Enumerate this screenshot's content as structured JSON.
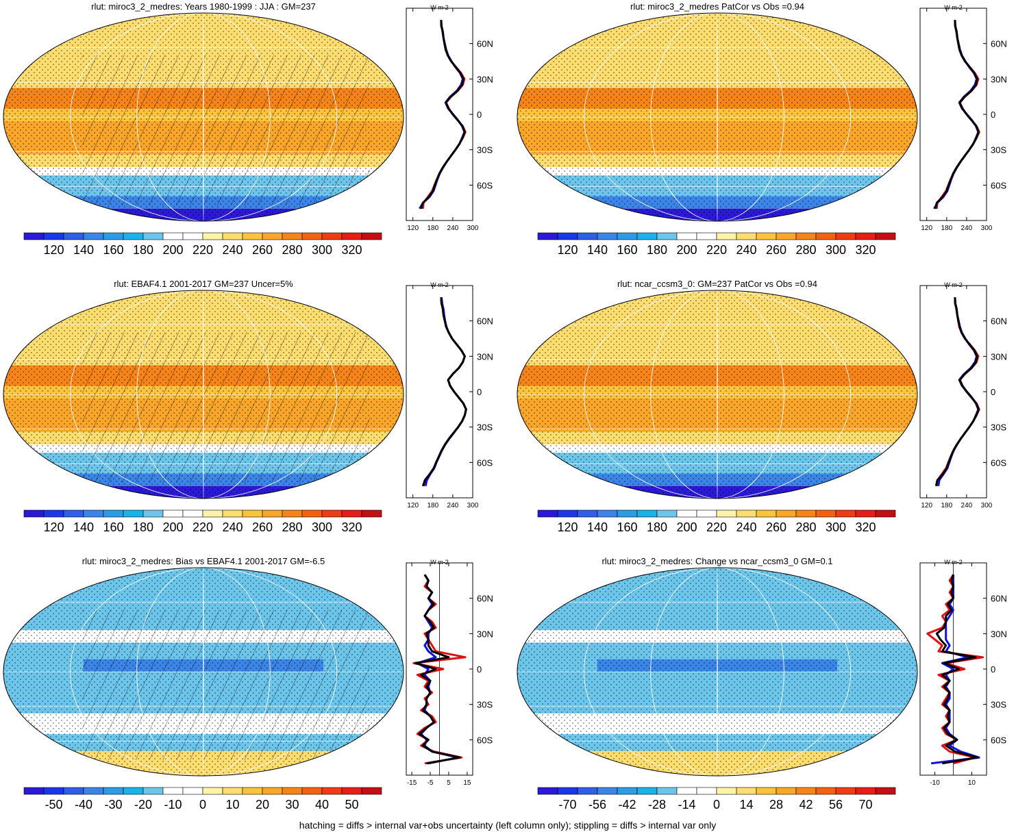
{
  "panels": [
    {
      "title": "rlut: miroc3_2_medres: Years 1980-1999 : JJA : GM=237",
      "hatched": true,
      "colorbar": {
        "labels": [
          "120",
          "140",
          "160",
          "180",
          "200",
          "220",
          "240",
          "260",
          "280",
          "300",
          "320"
        ],
        "scheme": "absolute"
      },
      "zonal_mean": {
        "unit": "W m-2",
        "xticks": [
          "120",
          "180",
          "240",
          "300"
        ],
        "xlim": [
          100,
          300
        ],
        "zero_line": false
      }
    },
    {
      "title": "rlut: miroc3_2_medres PatCor vs Obs =0.94",
      "hatched": false,
      "colorbar": {
        "labels": [
          "120",
          "140",
          "160",
          "180",
          "200",
          "220",
          "240",
          "260",
          "280",
          "300",
          "320"
        ],
        "scheme": "absolute"
      },
      "zonal_mean": {
        "unit": "W m-2",
        "xticks": [
          "120",
          "180",
          "240",
          "300"
        ],
        "xlim": [
          100,
          300
        ],
        "zero_line": false
      }
    },
    {
      "title": "rlut: EBAF4.1 2001-2017 GM=237 Uncer=5%",
      "hatched": true,
      "colorbar": {
        "labels": [
          "120",
          "140",
          "160",
          "180",
          "200",
          "220",
          "240",
          "260",
          "280",
          "300",
          "320"
        ],
        "scheme": "absolute"
      },
      "zonal_mean": {
        "unit": "W m-2",
        "xticks": [
          "120",
          "180",
          "240",
          "300"
        ],
        "xlim": [
          100,
          300
        ],
        "zero_line": false
      }
    },
    {
      "title": "rlut: ncar_ccsm3_0: GM=237 PatCor vs Obs =0.94",
      "hatched": false,
      "colorbar": {
        "labels": [
          "120",
          "140",
          "160",
          "180",
          "200",
          "220",
          "240",
          "260",
          "280",
          "300",
          "320"
        ],
        "scheme": "absolute"
      },
      "zonal_mean": {
        "unit": "W m-2",
        "xticks": [
          "120",
          "180",
          "240",
          "300"
        ],
        "xlim": [
          100,
          300
        ],
        "zero_line": false
      }
    },
    {
      "title": "rlut: miroc3_2_medres: Bias vs EBAF4.1 2001-2017 GM=-6.5",
      "hatched": true,
      "colorbar": {
        "labels": [
          "-50",
          "-40",
          "-30",
          "-20",
          "-10",
          "0",
          "10",
          "20",
          "30",
          "40",
          "50"
        ],
        "scheme": "diff"
      },
      "zonal_mean": {
        "unit": "W m-2",
        "xticks": [
          "-15",
          "-5",
          "5",
          "15"
        ],
        "xlim": [
          -18,
          18
        ],
        "zero_line": true
      }
    },
    {
      "title": "rlut: miroc3_2_medres: Change vs ncar_ccsm3_0 GM=0.1",
      "hatched": false,
      "colorbar": {
        "labels": [
          "-70",
          "-56",
          "-42",
          "-28",
          "-14",
          "0",
          "14",
          "28",
          "42",
          "56",
          "70"
        ],
        "scheme": "diff"
      },
      "zonal_mean": {
        "unit": "W m-2",
        "xticks": [
          "-10",
          "10"
        ],
        "xlim": [
          -18,
          18
        ],
        "zero_line": true
      }
    }
  ],
  "lat_ticks": [
    "60N",
    "30N",
    "0",
    "30S",
    "60S"
  ],
  "footer": "hatching = diffs > internal var+obs uncertainty (left column only); stippling = diffs > internal var only",
  "colors": {
    "absolute_scale": [
      "#2a19d6",
      "#1a38e8",
      "#2e5fe6",
      "#3b84e8",
      "#2c9ce6",
      "#1bb2ec",
      "#6cc6ec",
      "#ffffff",
      "#ffffff",
      "#fff3a8",
      "#fddc70",
      "#fbc33e",
      "#f9a62a",
      "#f68418",
      "#f36210",
      "#ee3c14",
      "#e61e16",
      "#c40e14"
    ],
    "diff_scale": [
      "#2a19d6",
      "#1a38e8",
      "#2e5fe6",
      "#3b84e8",
      "#2c9ce6",
      "#1bb2ec",
      "#6cc6ec",
      "#ffffff",
      "#ffffff",
      "#fff3a8",
      "#fddc70",
      "#fbc33e",
      "#f9a62a",
      "#f68418",
      "#f36210",
      "#ee3c14",
      "#e61e16",
      "#c40e14"
    ],
    "series": [
      "#e01010",
      "#1010e0",
      "#000000"
    ]
  },
  "chart_data": {
    "type": "line",
    "description_units": "W m-2 vs latitude (deg)",
    "latitudes": [
      -80,
      -75,
      -70,
      -65,
      -60,
      -55,
      -50,
      -45,
      -40,
      -35,
      -30,
      -25,
      -20,
      -15,
      -10,
      -5,
      0,
      5,
      10,
      15,
      20,
      25,
      30,
      35,
      40,
      45,
      50,
      55,
      60,
      65,
      70,
      75,
      80
    ],
    "panels": [
      {
        "series": [
          {
            "values": [
              150,
              152,
              165,
              178,
              185,
              192,
              200,
              210,
              222,
              235,
              248,
              260,
              270,
              278,
              270,
              255,
              240,
              228,
              220,
              235,
              255,
              270,
              275,
              265,
              250,
              235,
              225,
              218,
              215,
              212,
              210,
              205,
              205
            ]
          },
          {
            "values": [
              140,
              150,
              170,
              182,
              188,
              194,
              201,
              211,
              222,
              235,
              248,
              260,
              268,
              275,
              268,
              256,
              241,
              226,
              218,
              232,
              252,
              265,
              270,
              262,
              248,
              236,
              226,
              220,
              216,
              212,
              209,
              206,
              205
            ]
          },
          {
            "values": [
              145,
              150,
              168,
              180,
              186,
              193,
              200,
              210,
              222,
              235,
              248,
              260,
              269,
              276,
              269,
              255,
              240,
              227,
              219,
              234,
              254,
              268,
              272,
              263,
              249,
              235,
              225,
              219,
              215,
              212,
              210,
              206,
              205
            ]
          }
        ]
      },
      {
        "series": [
          {
            "values": [
              150,
              152,
              165,
              178,
              185,
              192,
              200,
              210,
              222,
              235,
              248,
              260,
              270,
              278,
              270,
              255,
              240,
              228,
              220,
              235,
              255,
              270,
              275,
              265,
              250,
              235,
              225,
              218,
              215,
              212,
              210,
              205,
              205
            ]
          },
          {
            "values": [
              142,
              152,
              170,
              182,
              188,
              194,
              201,
              211,
              222,
              235,
              248,
              260,
              268,
              275,
              268,
              256,
              241,
              226,
              218,
              232,
              252,
              265,
              270,
              262,
              248,
              236,
              226,
              220,
              216,
              212,
              209,
              206,
              205
            ]
          },
          {
            "values": [
              146,
              150,
              168,
              180,
              186,
              193,
              200,
              210,
              222,
              235,
              248,
              260,
              269,
              276,
              269,
              255,
              240,
              227,
              219,
              234,
              254,
              268,
              272,
              263,
              249,
              235,
              225,
              219,
              215,
              212,
              210,
              206,
              205
            ]
          }
        ]
      },
      {
        "series": [
          {
            "values": [
              152,
              158,
              170,
              182,
              190,
              198,
              206,
              216,
              228,
              242,
              256,
              268,
              276,
              280,
              272,
              258,
              244,
              232,
              226,
              240,
              258,
              270,
              276,
              266,
              252,
              238,
              228,
              220,
              216,
              212,
              210,
              206,
              205
            ]
          },
          {
            "values": [
              158,
              162,
              172,
              184,
              191,
              199,
              207,
              217,
              229,
              243,
              256,
              268,
              276,
              280,
              272,
              258,
              244,
              232,
              226,
              240,
              258,
              270,
              276,
              266,
              252,
              238,
              228,
              221,
              217,
              214,
              212,
              208,
              206
            ]
          },
          {
            "values": [
              150,
              156,
              170,
              183,
              190,
              198,
              206,
              216,
              228,
              242,
              256,
              268,
              276,
              280,
              272,
              258,
              244,
              232,
              226,
              240,
              258,
              270,
              276,
              266,
              252,
              238,
              228,
              220,
              216,
              212,
              210,
              206,
              205
            ]
          }
        ]
      },
      {
        "series": [
          {
            "values": [
              150,
              152,
              165,
              178,
              185,
              192,
              200,
              210,
              222,
              235,
              248,
              260,
              270,
              278,
              270,
              255,
              240,
              228,
              220,
              235,
              255,
              270,
              275,
              265,
              250,
              235,
              225,
              218,
              215,
              212,
              210,
              205,
              205
            ]
          },
          {
            "values": [
              155,
              158,
              170,
              182,
              188,
              194,
              201,
              211,
              222,
              235,
              248,
              260,
              268,
              275,
              268,
              256,
              241,
              226,
              218,
              232,
              252,
              265,
              270,
              262,
              248,
              236,
              226,
              220,
              216,
              212,
              209,
              206,
              205
            ]
          },
          {
            "values": [
              148,
              152,
              168,
              180,
              186,
              193,
              200,
              210,
              222,
              235,
              248,
              260,
              269,
              276,
              269,
              255,
              240,
              227,
              219,
              234,
              254,
              268,
              272,
              263,
              249,
              235,
              225,
              219,
              215,
              212,
              210,
              206,
              205
            ]
          }
        ]
      },
      {
        "series": [
          {
            "values": [
              -8,
              12,
              -3,
              -10,
              -6,
              -12,
              -8,
              -2,
              -4,
              -10,
              -6,
              -8,
              -4,
              -8,
              -6,
              -12,
              2,
              -14,
              14,
              -2,
              -4,
              -6,
              -8,
              -2,
              -4,
              -8,
              -6,
              -2,
              -6,
              -4,
              -8,
              -6,
              -8
            ]
          },
          {
            "values": [
              -6,
              10,
              -4,
              -8,
              -7,
              -10,
              -7,
              -3,
              -5,
              -8,
              -7,
              -7,
              -5,
              -6,
              -5,
              -8,
              -6,
              -12,
              -2,
              -6,
              -8,
              -6,
              -6,
              -4,
              -6,
              -8,
              -6,
              -4,
              -6,
              -4,
              -7,
              -6,
              -8
            ]
          },
          {
            "values": [
              -7,
              11,
              -4,
              -9,
              -6,
              -11,
              -7,
              -3,
              -5,
              -9,
              -7,
              -7,
              -5,
              -7,
              -5,
              -10,
              -2,
              -13,
              5,
              -4,
              -6,
              -6,
              -7,
              -3,
              -5,
              -8,
              -6,
              -3,
              -6,
              -4,
              -7,
              -6,
              -8
            ]
          }
        ]
      },
      {
        "series": [
          {
            "values": [
              0,
              12,
              -2,
              -6,
              2,
              -4,
              -6,
              -2,
              -4,
              -2,
              -6,
              -4,
              -2,
              -6,
              -2,
              -8,
              6,
              -4,
              16,
              -8,
              -6,
              -10,
              -14,
              -6,
              -4,
              -6,
              -2,
              -4,
              0,
              -2,
              0,
              -2,
              0
            ]
          },
          {
            "values": [
              -12,
              14,
              4,
              -2,
              2,
              -2,
              -4,
              -2,
              -2,
              -2,
              -4,
              -2,
              -2,
              -4,
              -2,
              -4,
              0,
              -6,
              8,
              -4,
              -2,
              -4,
              -4,
              -4,
              -4,
              -2,
              0,
              -2,
              0,
              0,
              0,
              0,
              0
            ]
          },
          {
            "values": [
              -6,
              13,
              1,
              -4,
              2,
              -3,
              -5,
              -2,
              -3,
              -2,
              -5,
              -3,
              -2,
              -5,
              -2,
              -6,
              3,
              -5,
              12,
              -6,
              -4,
              -7,
              -9,
              -5,
              -4,
              -4,
              -1,
              -3,
              0,
              -1,
              0,
              -1,
              0
            ]
          }
        ]
      }
    ]
  }
}
